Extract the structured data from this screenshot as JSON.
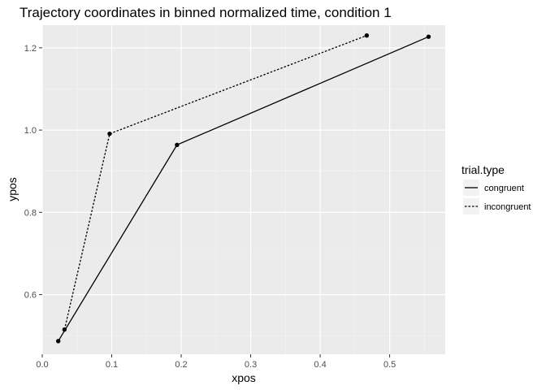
{
  "chart_data": {
    "type": "line",
    "title": "Trajectory coordinates in binned normalized time, condition 1",
    "xlabel": "xpos",
    "ylabel": "ypos",
    "xlim": [
      0.0,
      0.58
    ],
    "ylim": [
      0.455,
      1.255
    ],
    "x_ticks": [
      {
        "value": 0.0,
        "label": "0.0"
      },
      {
        "value": 0.1,
        "label": "0.1"
      },
      {
        "value": 0.2,
        "label": "0.2"
      },
      {
        "value": 0.3,
        "label": "0.3"
      },
      {
        "value": 0.4,
        "label": "0.4"
      },
      {
        "value": 0.5,
        "label": "0.5"
      }
    ],
    "y_ticks": [
      {
        "value": 0.6,
        "label": "0.6"
      },
      {
        "value": 0.8,
        "label": "0.8"
      },
      {
        "value": 1.0,
        "label": "1.0"
      },
      {
        "value": 1.2,
        "label": "1.2"
      }
    ],
    "grid": true,
    "panel_background": "#ebebeb",
    "grid_color": "#ffffff",
    "line_color": "#000000",
    "legend": {
      "title": "trial.type",
      "placement": "right"
    },
    "series": [
      {
        "name": "congruent",
        "dash": "solid",
        "points": [
          {
            "x": 0.023,
            "y": 0.487
          },
          {
            "x": 0.194,
            "y": 0.964
          },
          {
            "x": 0.556,
            "y": 1.227
          }
        ]
      },
      {
        "name": "incongruent",
        "dash": "dotted",
        "points": [
          {
            "x": 0.032,
            "y": 0.515
          },
          {
            "x": 0.097,
            "y": 0.991
          },
          {
            "x": 0.467,
            "y": 1.23
          }
        ]
      }
    ]
  }
}
